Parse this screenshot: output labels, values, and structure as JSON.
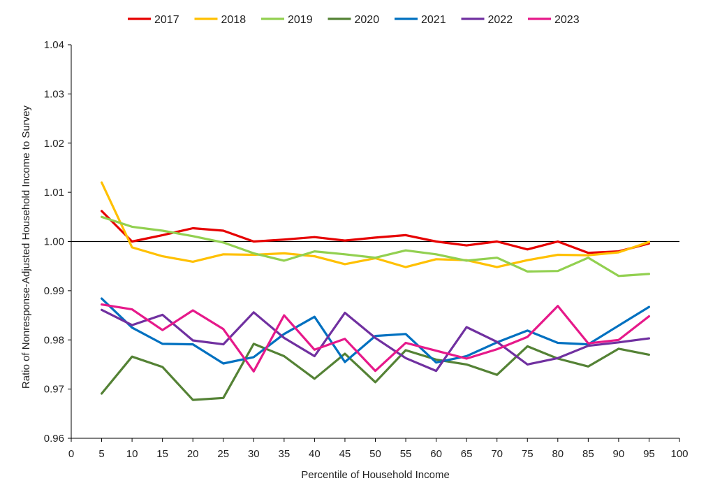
{
  "chart_data": {
    "type": "line",
    "xlabel": "Percentile of Household Income",
    "ylabel": "Ratio of Nonresponse-Adjusted Household Income to Survey",
    "xlim": [
      0,
      100
    ],
    "ylim": [
      0.96,
      1.04
    ],
    "x_ticks": [
      "0",
      "5",
      "10",
      "15",
      "20",
      "25",
      "30",
      "35",
      "40",
      "45",
      "50",
      "55",
      "60",
      "65",
      "70",
      "75",
      "80",
      "85",
      "90",
      "95",
      "100"
    ],
    "y_ticks": [
      "0.96",
      "0.97",
      "0.98",
      "0.99",
      "1.00",
      "1.01",
      "1.02",
      "1.03",
      "1.04"
    ],
    "reference_line": 1.0,
    "grid": false,
    "legend_position": "top",
    "x": [
      5,
      10,
      15,
      20,
      25,
      30,
      35,
      40,
      45,
      50,
      55,
      60,
      65,
      70,
      75,
      80,
      85,
      90,
      95
    ],
    "series": [
      {
        "name": "2017",
        "color": "#E60000",
        "values": [
          1.0062,
          1.0,
          1.0013,
          1.0027,
          1.0022,
          1.0,
          1.0004,
          1.0009,
          1.0002,
          1.0008,
          1.0013,
          1.0,
          0.9992,
          1.0,
          0.9984,
          1.0,
          0.9977,
          0.998,
          0.9996
        ]
      },
      {
        "name": "2018",
        "color": "#FFC000",
        "values": [
          1.012,
          0.9988,
          0.997,
          0.9959,
          0.9974,
          0.9973,
          0.9976,
          0.997,
          0.9954,
          0.9966,
          0.9948,
          0.9964,
          0.9962,
          0.9948,
          0.9962,
          0.9973,
          0.9972,
          0.9978,
          0.9999
        ]
      },
      {
        "name": "2019",
        "color": "#92D050",
        "values": [
          1.005,
          1.003,
          1.0022,
          1.0011,
          0.9998,
          0.9976,
          0.9961,
          0.998,
          0.9974,
          0.9967,
          0.9982,
          0.9974,
          0.9961,
          0.9967,
          0.9939,
          0.994,
          0.9967,
          0.993,
          0.9934
        ]
      },
      {
        "name": "2020",
        "color": "#548235",
        "values": [
          0.9691,
          0.9766,
          0.9745,
          0.9678,
          0.9682,
          0.9792,
          0.9767,
          0.9721,
          0.9772,
          0.9714,
          0.9779,
          0.976,
          0.975,
          0.9729,
          0.9787,
          0.9762,
          0.9746,
          0.9782,
          0.977
        ]
      },
      {
        "name": "2021",
        "color": "#0070C0",
        "values": [
          0.9884,
          0.9825,
          0.9792,
          0.9791,
          0.9752,
          0.9765,
          0.9812,
          0.9847,
          0.9755,
          0.9808,
          0.9812,
          0.9754,
          0.9767,
          0.9795,
          0.9819,
          0.9794,
          0.9791,
          0.9829,
          0.9867
        ]
      },
      {
        "name": "2022",
        "color": "#7030A0",
        "values": [
          0.9861,
          0.983,
          0.9851,
          0.9799,
          0.9791,
          0.9856,
          0.9804,
          0.9767,
          0.9855,
          0.9804,
          0.9763,
          0.9737,
          0.9826,
          0.9796,
          0.975,
          0.9763,
          0.9788,
          0.9795,
          0.9803
        ]
      },
      {
        "name": "2023",
        "color": "#E6198A",
        "values": [
          0.9872,
          0.9862,
          0.982,
          0.986,
          0.9822,
          0.9736,
          0.985,
          0.978,
          0.9802,
          0.9737,
          0.9794,
          0.9778,
          0.9762,
          0.9781,
          0.9806,
          0.9869,
          0.9793,
          0.98,
          0.9848
        ]
      }
    ]
  }
}
